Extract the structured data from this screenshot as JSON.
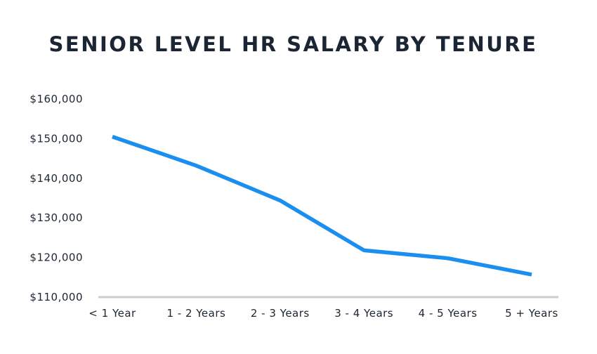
{
  "chart_data": {
    "type": "line",
    "title": "SENIOR LEVEL HR SALARY BY TENURE",
    "categories": [
      "< 1 Year",
      "1 - 2 Years",
      "2 - 3 Years",
      "3 - 4 Years",
      "4 - 5 Years",
      "5 + Years"
    ],
    "series": [
      {
        "values": [
          150500,
          143200,
          134400,
          121800,
          119800,
          115700
        ]
      }
    ],
    "yticks": [
      "$110,000",
      "$120,000",
      "$130,000",
      "$140,000",
      "$150,000",
      "$160,000"
    ],
    "ylim": [
      110000,
      160000
    ],
    "xlabel": "",
    "ylabel": "",
    "grid": false,
    "colors": {
      "line": "#1a8ff0",
      "baseline": "#cccccc",
      "text": "#1c2533"
    }
  }
}
